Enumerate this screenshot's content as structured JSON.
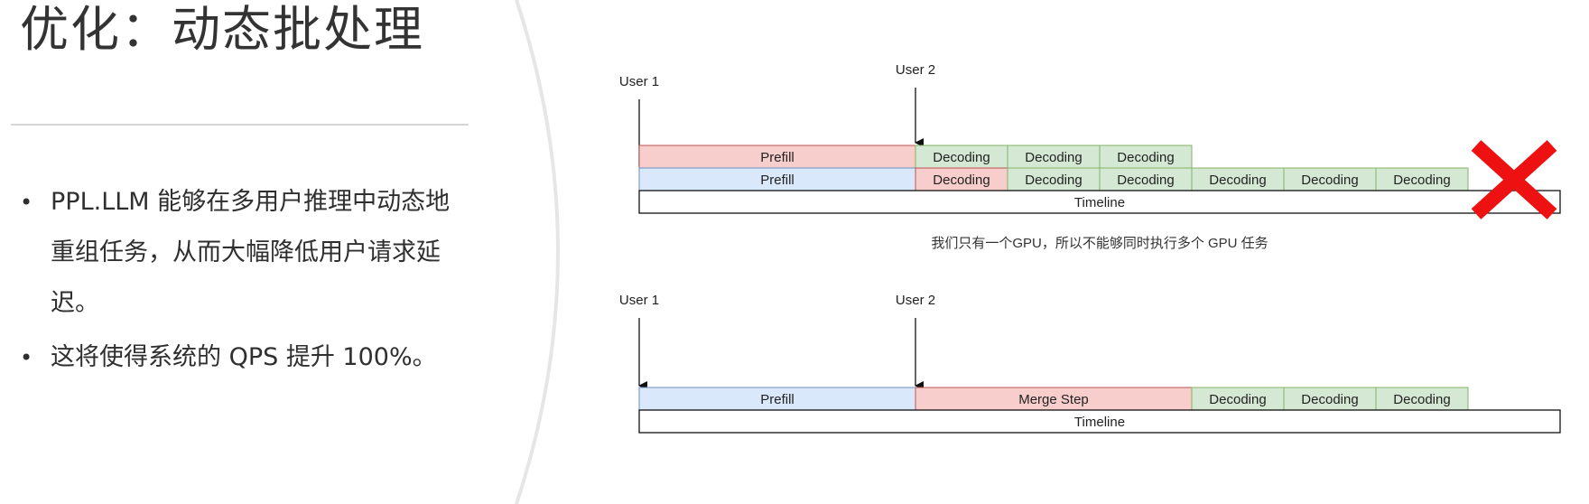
{
  "title": "优化：动态批处理",
  "bullets": [
    "PPL.LLM 能够在多用户推理中动态地重组任务，从而大幅降低用户请求延迟。",
    "这将使得系统的 QPS 提升 100%。"
  ],
  "colors": {
    "prefill_blue": "#dae8fc",
    "prefill_red": "#f8cecc",
    "decoding_green": "#d5e8d4",
    "cross_red": "#ee1111",
    "arc_gray": "#e6e6e6"
  },
  "diagrams": [
    {
      "user1": "User 1",
      "user2": "User 2",
      "user2_row": [
        {
          "label": "Prefill",
          "kind": "prefill_red",
          "span": 3
        },
        {
          "label": "Decoding",
          "kind": "decoding",
          "span": 1
        },
        {
          "label": "Decoding",
          "kind": "decoding",
          "span": 1
        },
        {
          "label": "Decoding",
          "kind": "decoding",
          "span": 1
        }
      ],
      "user1_row": [
        {
          "label": "Prefill",
          "kind": "prefill_blue",
          "span": 3
        },
        {
          "label": "Decoding",
          "kind": "prefill_red",
          "span": 1
        },
        {
          "label": "Decoding",
          "kind": "decoding",
          "span": 1
        },
        {
          "label": "Decoding",
          "kind": "decoding",
          "span": 1
        },
        {
          "label": "Decoding",
          "kind": "decoding",
          "span": 1
        },
        {
          "label": "Decoding",
          "kind": "decoding",
          "span": 1
        },
        {
          "label": "Decoding",
          "kind": "decoding",
          "span": 1
        }
      ],
      "timeline": "Timeline",
      "caption": "我们只有一个GPU，所以不能够同时执行多个 GPU 任务",
      "crossed": true
    },
    {
      "user1": "User 1",
      "user2": "User 2",
      "user1_row": [
        {
          "label": "Prefill",
          "kind": "prefill_blue",
          "span": 3
        },
        {
          "label": "Merge Step",
          "kind": "prefill_red",
          "span": 3
        },
        {
          "label": "Decoding",
          "kind": "decoding",
          "span": 1
        },
        {
          "label": "Decoding",
          "kind": "decoding",
          "span": 1
        },
        {
          "label": "Decoding",
          "kind": "decoding",
          "span": 1
        }
      ],
      "timeline": "Timeline"
    }
  ]
}
